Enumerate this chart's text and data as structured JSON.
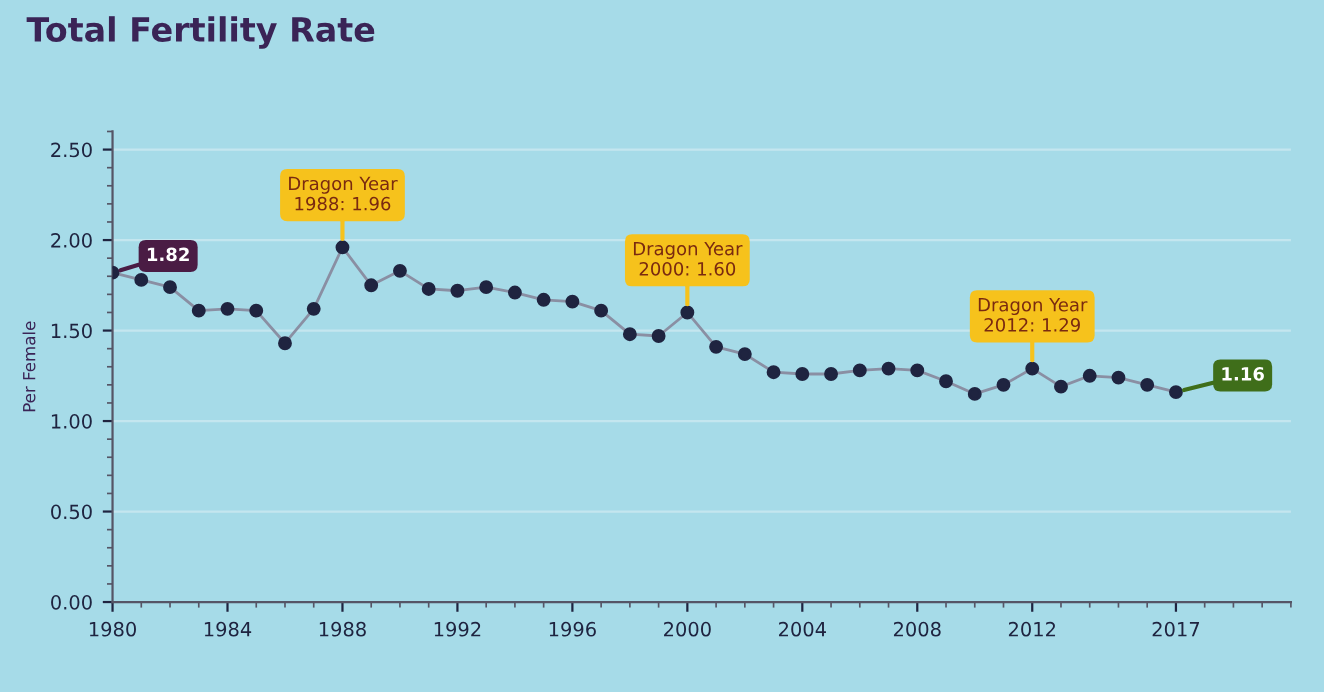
{
  "chart_data": {
    "type": "line",
    "title": "Total Fertility Rate",
    "ylabel": "Per Female",
    "x": [
      1980,
      1981,
      1982,
      1983,
      1984,
      1985,
      1986,
      1987,
      1988,
      1989,
      1990,
      1991,
      1992,
      1993,
      1994,
      1995,
      1996,
      1997,
      1998,
      1999,
      2000,
      2001,
      2002,
      2003,
      2004,
      2005,
      2006,
      2007,
      2008,
      2009,
      2010,
      2011,
      2012,
      2013,
      2014,
      2015,
      2016,
      2017
    ],
    "series": [
      {
        "color": "#1f2440",
        "values": [
          1.82,
          1.78,
          1.74,
          1.61,
          1.62,
          1.61,
          1.43,
          1.62,
          1.96,
          1.75,
          1.83,
          1.73,
          1.72,
          1.74,
          1.71,
          1.67,
          1.66,
          1.61,
          1.48,
          1.47,
          1.6,
          1.41,
          1.37,
          1.27,
          1.26,
          1.26,
          1.28,
          1.29,
          1.28,
          1.22,
          1.15,
          1.2,
          1.29,
          1.19,
          1.25,
          1.24,
          1.2,
          1.16
        ]
      }
    ],
    "xlim": [
      1980,
      2021
    ],
    "xticks": [
      1980,
      1984,
      1988,
      1992,
      1996,
      2000,
      2004,
      2008,
      2012,
      2017
    ],
    "ylim": [
      0,
      2.6
    ],
    "yticks": [
      {
        "value": 0,
        "label": "0.00"
      },
      {
        "value": 0.5,
        "label": "0.50"
      },
      {
        "value": 1,
        "label": "1.00"
      },
      {
        "value": 1.5,
        "label": "1.50"
      },
      {
        "value": 2,
        "label": "2.00"
      },
      {
        "value": 2.5,
        "label": "2.50"
      }
    ],
    "grid": "y",
    "marker": "circle",
    "line_style": "solid",
    "annotations": [
      {
        "text": "1.82",
        "x": 1980,
        "y": 1.82
      },
      {
        "text": "Dragon Year\n1988: 1.96",
        "x": 1988,
        "y": 1.96
      },
      {
        "text": "Dragon Year\n2000: 1.60",
        "x": 2000,
        "y": 1.6
      },
      {
        "text": "Dragon Year\n2012: 1.29",
        "x": 2012,
        "y": 1.29
      },
      {
        "text": "1.16",
        "x": 2017,
        "y": 1.16
      }
    ]
  }
}
